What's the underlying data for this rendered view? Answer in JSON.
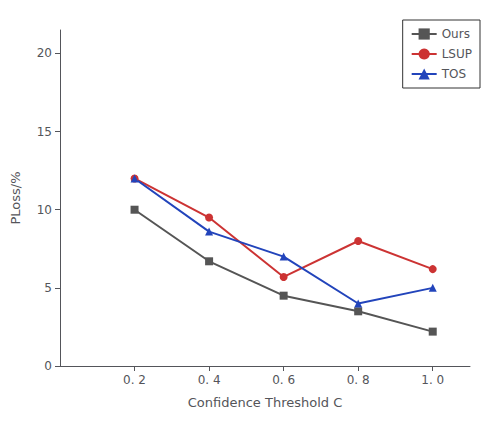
{
  "chart_data": {
    "type": "line",
    "xlabel": "Confidence Threshold C",
    "ylabel": "PLoss/%",
    "x": [
      0.2,
      0.4,
      0.6,
      0.8,
      1.0
    ],
    "series": [
      {
        "name": "Ours",
        "color": "#555555",
        "marker": "square",
        "values": [
          10.0,
          6.7,
          4.5,
          3.5,
          2.2
        ]
      },
      {
        "name": "LSUP",
        "color": "#cc3333",
        "marker": "circle",
        "values": [
          12.0,
          9.5,
          5.7,
          8.0,
          6.2
        ]
      },
      {
        "name": "TOS",
        "color": "#2244bb",
        "marker": "triangle",
        "values": [
          12.0,
          8.6,
          7.0,
          4.0,
          5.0
        ]
      }
    ],
    "xlim": [
      0.0,
      1.1
    ],
    "ylim": [
      0,
      21.5
    ],
    "xticks": [
      {
        "value": 0.2,
        "label": "0. 2"
      },
      {
        "value": 0.4,
        "label": "0. 4"
      },
      {
        "value": 0.6,
        "label": "0. 6"
      },
      {
        "value": 0.8,
        "label": "0. 8"
      },
      {
        "value": 1.0,
        "label": "1. 0"
      }
    ],
    "yticks": [
      0,
      5,
      10,
      15,
      20
    ],
    "grid": false,
    "legend": "upper right"
  }
}
